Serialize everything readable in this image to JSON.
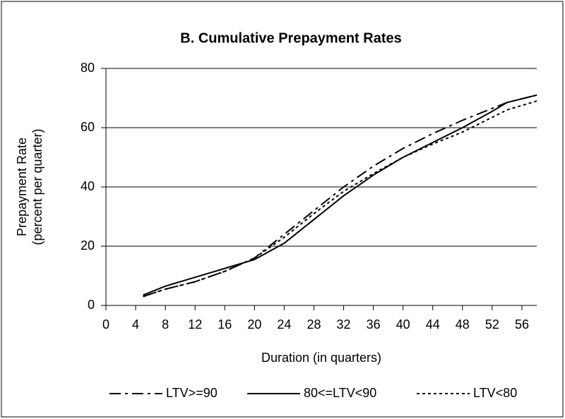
{
  "chart_data": {
    "type": "line",
    "title": "B. Cumulative Prepayment Rates",
    "xlabel": "Duration (in quarters)",
    "ylabel": [
      "Prepayment Rate",
      "(percent per quarter)"
    ],
    "x": [
      5,
      8,
      12,
      16,
      20,
      24,
      28,
      32,
      36,
      40,
      44,
      48,
      52,
      54,
      58
    ],
    "series": [
      {
        "name": "LTV>=90",
        "color": "#000000",
        "dash": "16 6 4 6",
        "values": [
          3,
          5.5,
          8,
          11.5,
          16,
          24,
          32,
          40,
          47,
          53,
          58,
          62.5,
          66.5,
          68.5,
          71
        ]
      },
      {
        "name": "80<=LTV<90",
        "color": "#000000",
        "dash": "none",
        "values": [
          3.5,
          6.5,
          9.5,
          12.5,
          15.5,
          21,
          29,
          37,
          44,
          50,
          55,
          60,
          65.5,
          68.5,
          71
        ]
      },
      {
        "name": "LTV<80",
        "color": "#000000",
        "dash": "4 4",
        "values": [
          3,
          5.5,
          8,
          11.5,
          16,
          23,
          31,
          38.5,
          44.5,
          50,
          54.5,
          58.5,
          63.5,
          66,
          69
        ]
      }
    ],
    "xlim": [
      0,
      58
    ],
    "xticks": [
      0,
      4,
      8,
      12,
      16,
      20,
      24,
      28,
      32,
      36,
      40,
      44,
      48,
      52,
      56
    ],
    "ylim": [
      0,
      80
    ],
    "yticks": [
      0,
      20,
      40,
      60,
      80
    ],
    "grid": true,
    "legend": "bottom"
  }
}
